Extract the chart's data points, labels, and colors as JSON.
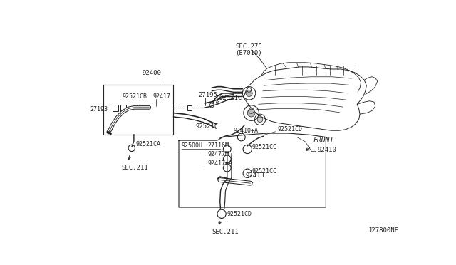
{
  "bg_color": "#ffffff",
  "line_color": "#222222",
  "fig_width": 6.4,
  "fig_height": 3.72,
  "diagram_id": "J27800NE",
  "sec270_label": "SEC.270",
  "e7010_label": "(E7010)",
  "label_92400": "92400",
  "label_92521CB": "92521CB",
  "label_92417": "92417",
  "label_27195": "27195",
  "label_92521C_1": "92521C",
  "label_27193": "27193",
  "label_92521C_2": "92521C",
  "label_92521CA": "92521CA",
  "label_SEC211_top": "SEC.211",
  "label_92410A": "92410+A",
  "label_92521CD_r": "92521CD",
  "label_FRONT": "FRONT",
  "label_27116M": "27116M",
  "label_92477M": "92477M",
  "label_92500U": "92500U",
  "label_92417A": "92417+A",
  "label_92521CC_t": "92521CC",
  "label_92521CC_b": "92521CC",
  "label_92413": "92413",
  "label_92521CD_b": "92521CD",
  "label_SEC211_bot": "SEC.211",
  "label_92410": "92410"
}
